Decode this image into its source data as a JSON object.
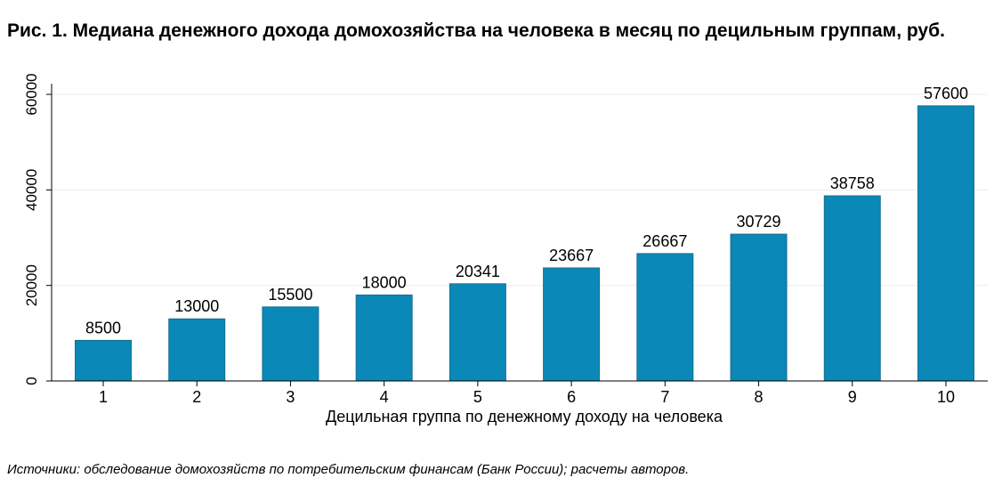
{
  "title": "Рис. 1. Медиана денежного дохода домохозяйства на человека в месяц по децильным группам, руб.",
  "source": "Источники: обследование домохозяйств по потребительским финансам (Банк России); расчеты авторов.",
  "colors": {
    "bar": "#0a88b8",
    "bar_edge": "#1a6e90",
    "grid": "#ececec",
    "axis": "#000000"
  },
  "chart_data": {
    "type": "bar",
    "categories": [
      "1",
      "2",
      "3",
      "4",
      "5",
      "6",
      "7",
      "8",
      "9",
      "10"
    ],
    "values": [
      8500,
      13000,
      15500,
      18000,
      20341,
      23667,
      26667,
      30729,
      38758,
      57600
    ],
    "data_labels": [
      "8500",
      "13000",
      "15500",
      "18000",
      "20341",
      "23667",
      "26667",
      "30729",
      "38758",
      "57600"
    ],
    "xlabel": "Децильная группа по денежному доходу на человека",
    "ylabel": "",
    "ylim": [
      0,
      60000
    ],
    "yticks": [
      0,
      20000,
      40000,
      60000
    ],
    "ytick_labels": [
      "0",
      "20000",
      "40000",
      "60000"
    ],
    "grid": true,
    "legend": "none"
  }
}
